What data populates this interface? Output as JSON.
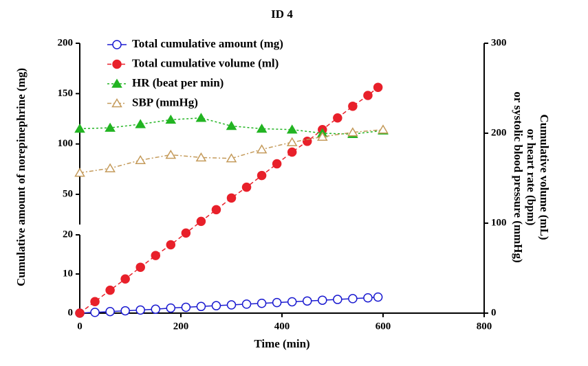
{
  "chart_data": {
    "type": "line",
    "title": "ID 4",
    "xlabel": "Time (min)",
    "ylabel": "Cumulative amount of norepinephrine (mg)",
    "y2label": [
      "Cumulative volume (mL)",
      "or heart rate (bpm)",
      "or systolic blood pressure (mmHg)"
    ],
    "xlim": [
      0,
      800
    ],
    "xticks": [
      0,
      200,
      400,
      600,
      800
    ],
    "y_segments": [
      {
        "ylim": [
          0,
          20
        ],
        "yticks": [
          0,
          10,
          20
        ]
      },
      {
        "ylim": [
          20,
          200
        ],
        "yticks": [
          50,
          100,
          150,
          200
        ]
      }
    ],
    "y2lim": [
      0,
      300
    ],
    "y2ticks": [
      0,
      100,
      200,
      300
    ],
    "legend": "upper left",
    "series": [
      {
        "name": "Total cumulative amount (mg)",
        "color": "#1a1ad0",
        "marker": "circle-open",
        "dash": "none",
        "axis": "y",
        "x": [
          0,
          30,
          60,
          90,
          120,
          150,
          180,
          210,
          240,
          270,
          300,
          330,
          360,
          390,
          420,
          450,
          480,
          510,
          540,
          570,
          590
        ],
        "values": [
          0,
          0.2,
          0.4,
          0.6,
          0.8,
          1.0,
          1.3,
          1.5,
          1.7,
          1.9,
          2.1,
          2.3,
          2.5,
          2.7,
          2.9,
          3.1,
          3.3,
          3.5,
          3.7,
          3.9,
          4.1
        ]
      },
      {
        "name": "Total cumulative volume (ml)",
        "color": "#e8202a",
        "marker": "circle",
        "dash": "6,4",
        "axis": "y2",
        "x": [
          0,
          30,
          60,
          90,
          120,
          150,
          180,
          210,
          240,
          270,
          300,
          330,
          360,
          390,
          420,
          450,
          480,
          510,
          540,
          570,
          590
        ],
        "values": [
          0,
          12.8,
          25.5,
          38,
          51,
          64,
          76,
          89,
          102,
          115,
          128,
          140,
          153,
          166,
          179,
          191,
          204,
          217,
          230,
          242,
          251
        ]
      },
      {
        "name": "HR (beat per min)",
        "color": "#22b422",
        "marker": "triangle",
        "dash": "3,3",
        "axis": "y2",
        "x": [
          0,
          60,
          120,
          180,
          240,
          300,
          360,
          420,
          480,
          540,
          600
        ],
        "values": [
          205,
          206,
          210,
          215,
          217,
          208,
          205,
          204,
          200,
          199,
          203
        ]
      },
      {
        "name": "SBP (mmHg)",
        "color": "#c49a5a",
        "marker": "triangle-open",
        "dash": "6,3,2,3",
        "axis": "y2",
        "x": [
          0,
          60,
          120,
          180,
          240,
          300,
          360,
          420,
          480,
          540,
          600
        ],
        "values": [
          156,
          161,
          170,
          176,
          173,
          172,
          182,
          190,
          196,
          201,
          204
        ]
      }
    ]
  }
}
